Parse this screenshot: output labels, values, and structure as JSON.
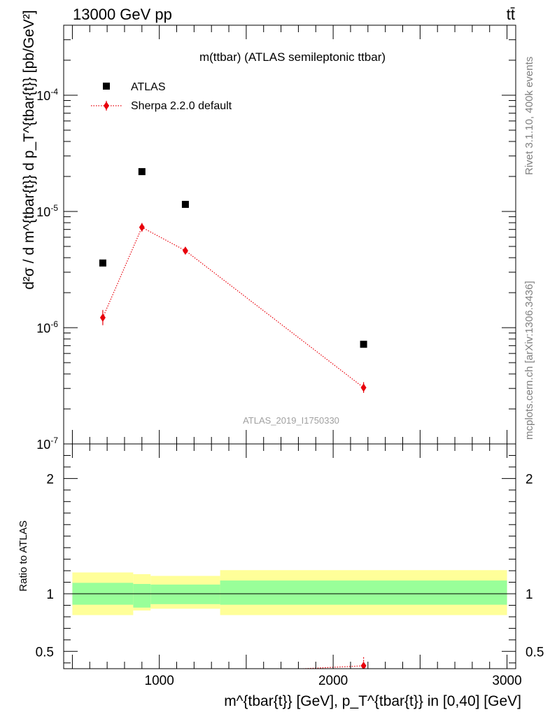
{
  "header": {
    "left": "13000 GeV pp",
    "right": "tt̄"
  },
  "side_labels": {
    "rivet": "Rivet 3.1.10,  400k events",
    "mcplots": "mcplots.cern.ch [arXiv:1306.3436]"
  },
  "colors": {
    "data": "#000000",
    "mc": "#e8000b",
    "band_outer": "#ffff99",
    "band_inner": "#99ff99"
  },
  "chart_data": [
    {
      "type": "scatter",
      "title": "m(ttbar) (ATLAS semileptonic ttbar)",
      "analysis_id": "ATLAS_2019_I1750330",
      "ylabel": "d²σ / d m^{tbar{t}} d p_T^{tbar{t}} [pb/GeV²]",
      "xlabel": "m^{tbar{t}} [GeV], p_T^{tbar{t}} in [0,40] [GeV]",
      "x_scale": "linear",
      "y_scale": "log",
      "xlim": [
        450,
        3050
      ],
      "ylim": [
        1e-07,
        0.0004
      ],
      "y_ticks": [
        {
          "value": 1e-07,
          "base": "10",
          "exp": "-7"
        },
        {
          "value": 1e-06,
          "base": "10",
          "exp": "-6"
        },
        {
          "value": 1e-05,
          "base": "10",
          "exp": "-5"
        },
        {
          "value": 0.0001,
          "base": "10",
          "exp": "-4"
        }
      ],
      "legend": {
        "position": "top-left",
        "entries": [
          "ATLAS",
          "Sherpa 2.2.0 default"
        ]
      },
      "series": [
        {
          "name": "ATLAS",
          "marker": "square",
          "points": [
            {
              "x": 675,
              "y": 3.6e-06
            },
            {
              "x": 900,
              "y": 2.2e-05
            },
            {
              "x": 1150,
              "y": 1.15e-05
            },
            {
              "x": 2175,
              "y": 7.2e-07
            }
          ]
        },
        {
          "name": "Sherpa 2.2.0 default",
          "marker": "diamond",
          "line": "dotted",
          "points": [
            {
              "x": 675,
              "y": 1.22e-06,
              "err_lo": 1.05e-06,
              "err_hi": 1.42e-06
            },
            {
              "x": 900,
              "y": 7.3e-06,
              "err_lo": 6.7e-06,
              "err_hi": 7.95e-06
            },
            {
              "x": 1150,
              "y": 4.6e-06,
              "err_lo": 4.35e-06,
              "err_hi": 4.85e-06
            },
            {
              "x": 2175,
              "y": 3.05e-07,
              "err_lo": 2.75e-07,
              "err_hi": 3.4e-07
            }
          ]
        }
      ]
    },
    {
      "type": "area",
      "ylabel": "Ratio to ATLAS",
      "xlabel": "m^{tbar{t}} [GeV], p_T^{tbar{t}} in [0,40] [GeV]",
      "xlim": [
        450,
        3050
      ],
      "ylim": [
        0.35,
        2.3
      ],
      "x_ticks": [
        1000,
        2000,
        3000
      ],
      "y_ticks": [
        0.5,
        1,
        2
      ],
      "reference_line": 1,
      "bands": [
        {
          "x_lo": 500,
          "x_hi": 850,
          "inner_lo": 0.905,
          "inner_hi": 1.095,
          "outer_lo": 0.815,
          "outer_hi": 1.185
        },
        {
          "x_lo": 850,
          "x_hi": 950,
          "inner_lo": 0.88,
          "inner_hi": 1.085,
          "outer_lo": 0.855,
          "outer_hi": 1.17
        },
        {
          "x_lo": 950,
          "x_hi": 1350,
          "inner_lo": 0.91,
          "inner_hi": 1.08,
          "outer_lo": 0.87,
          "outer_hi": 1.155
        },
        {
          "x_lo": 1350,
          "x_hi": 3000,
          "inner_lo": 0.905,
          "inner_hi": 1.115,
          "outer_lo": 0.815,
          "outer_hi": 1.205
        }
      ],
      "series": [
        {
          "name": "Sherpa 2.2.0 default",
          "points": [
            {
              "x": 1150,
              "y": 0.3
            },
            {
              "x": 2175,
              "y": 0.375,
              "err_lo": 0.34,
              "err_hi": 0.46
            }
          ]
        }
      ]
    }
  ]
}
